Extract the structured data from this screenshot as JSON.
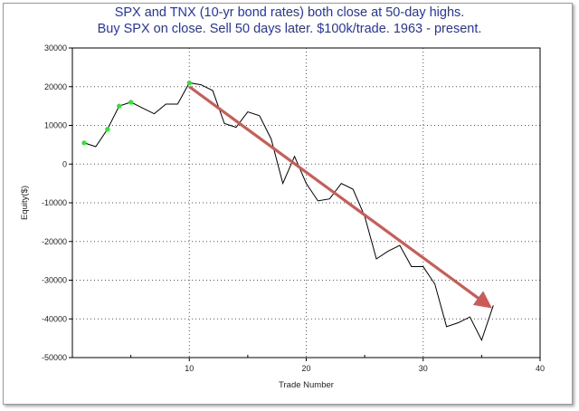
{
  "chart_data": {
    "type": "line",
    "title": "SPX and TNX (10-yr bond rates) both close at 50-day highs.",
    "subtitle": "Buy SPX on close. Sell 50 days later. $100k/trade. 1963 - present.",
    "xlabel": "Trade Number",
    "ylabel": "Equity($)",
    "xlim": [
      0,
      40
    ],
    "ylim": [
      -50000,
      30000
    ],
    "x_ticks": [
      10,
      20,
      30,
      40
    ],
    "y_ticks": [
      30000,
      20000,
      10000,
      0,
      -10000,
      -20000,
      -30000,
      -40000,
      -50000
    ],
    "grid": true,
    "series": [
      {
        "color": "#000000",
        "x": [
          1,
          2,
          3,
          4,
          5,
          6,
          7,
          8,
          9,
          10,
          11,
          12,
          13,
          14,
          15,
          16,
          17,
          18,
          19,
          20,
          21,
          22,
          23,
          24,
          25,
          26,
          27,
          28,
          29,
          30,
          31,
          32,
          33,
          34,
          35,
          36
        ],
        "y": [
          5500,
          4500,
          9000,
          15000,
          16000,
          14500,
          13000,
          15500,
          15500,
          21000,
          20500,
          19000,
          10500,
          9500,
          13500,
          12500,
          6500,
          -5000,
          2000,
          -5000,
          -9500,
          -9000,
          -5000,
          -6500,
          -13500,
          -24500,
          -22500,
          -21000,
          -26500,
          -26500,
          -31000,
          -42000,
          -41000,
          -39500,
          -45500,
          -36500
        ]
      }
    ],
    "highlight_points": {
      "color": "#22ee22",
      "x": [
        1,
        3,
        4,
        5,
        10
      ],
      "y": [
        5500,
        9000,
        15000,
        16000,
        21000
      ]
    },
    "trend_arrow": {
      "color": "#cc5b55",
      "from": [
        10,
        20000
      ],
      "to": [
        36,
        -37500
      ]
    }
  }
}
